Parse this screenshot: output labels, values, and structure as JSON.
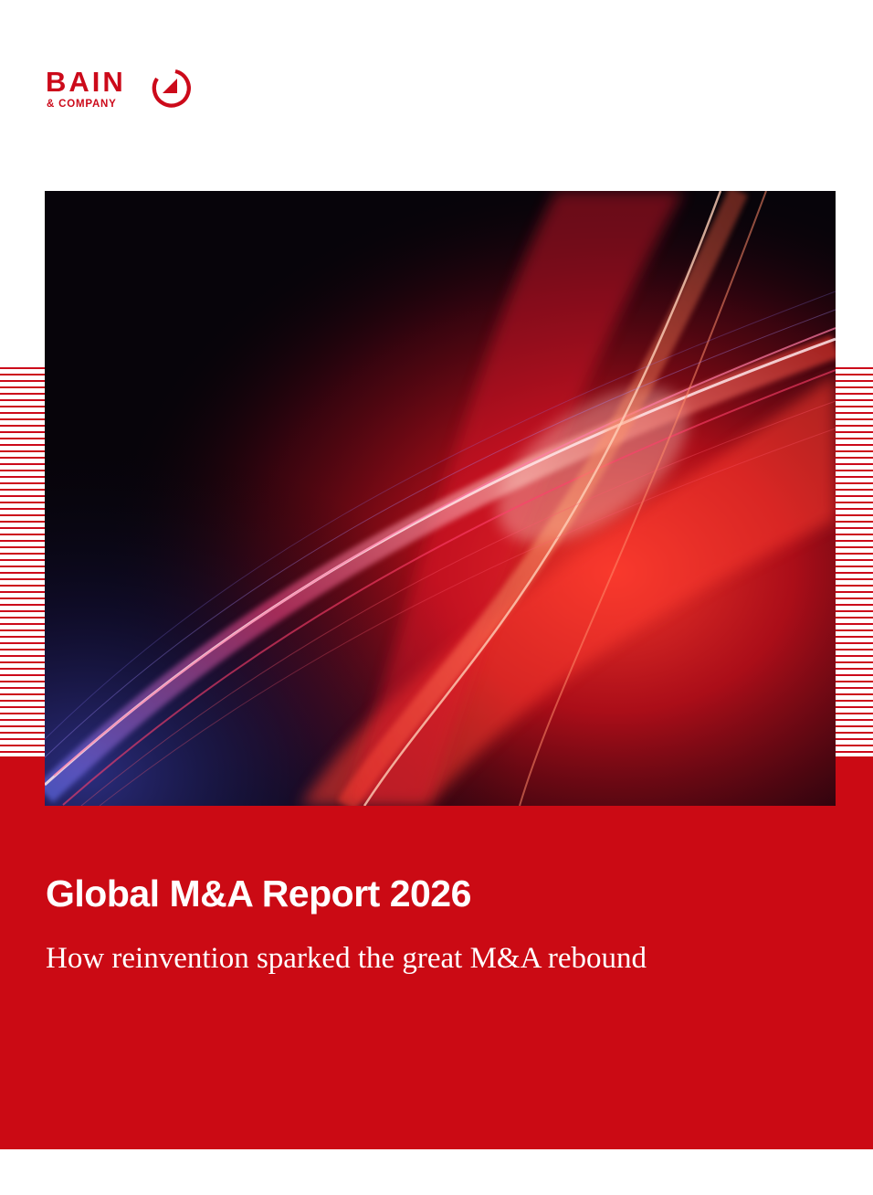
{
  "brand": {
    "name": "BAIN",
    "sub": "& COMPANY",
    "color": "#cc0a1a"
  },
  "cover": {
    "title": "Global M&A Report 2026",
    "subtitle": "How reinvention sparked the great M&A rebound",
    "band_color": "#cb0a14",
    "image_icon": "light-wave-illustration"
  }
}
